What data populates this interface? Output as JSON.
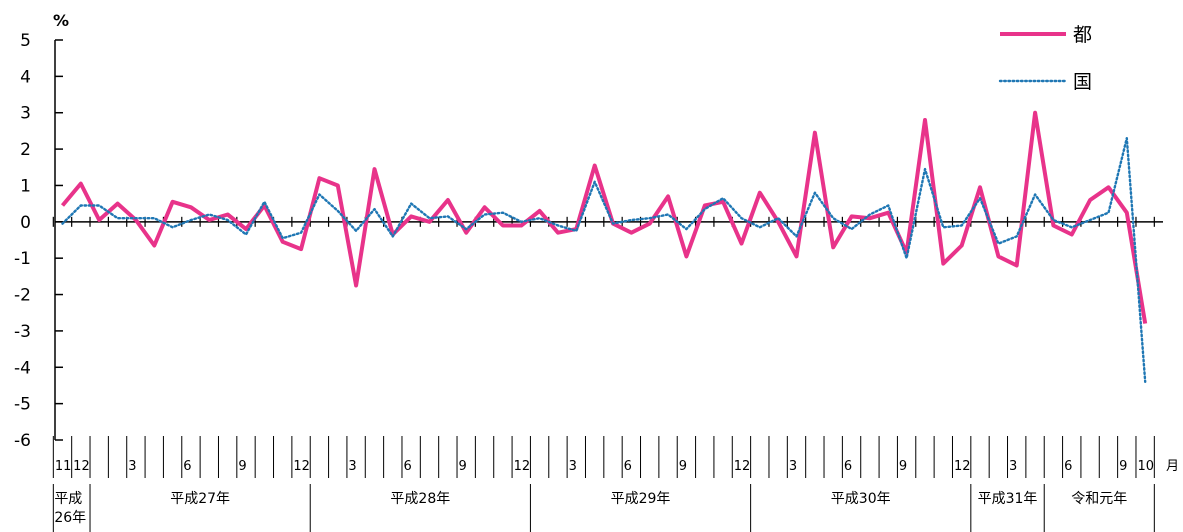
{
  "chart_data": {
    "type": "line",
    "y_unit": "%",
    "x_unit": "月",
    "ylim": [
      -6,
      5
    ],
    "y_ticks": [
      5,
      4,
      3,
      2,
      1,
      0,
      -1,
      -2,
      -3,
      -4,
      -5,
      -6
    ],
    "grid": false,
    "legend_position": "top-right",
    "month_labels": [
      {
        "index": 0,
        "text": "11"
      },
      {
        "index": 1,
        "text": "12"
      },
      {
        "index": 4,
        "text": "3"
      },
      {
        "index": 7,
        "text": "6"
      },
      {
        "index": 10,
        "text": "9"
      },
      {
        "index": 13,
        "text": "12"
      },
      {
        "index": 16,
        "text": "3"
      },
      {
        "index": 19,
        "text": "6"
      },
      {
        "index": 22,
        "text": "9"
      },
      {
        "index": 25,
        "text": "12"
      },
      {
        "index": 28,
        "text": "3"
      },
      {
        "index": 31,
        "text": "6"
      },
      {
        "index": 34,
        "text": "9"
      },
      {
        "index": 37,
        "text": "12"
      },
      {
        "index": 40,
        "text": "3"
      },
      {
        "index": 43,
        "text": "6"
      },
      {
        "index": 46,
        "text": "9"
      },
      {
        "index": 49,
        "text": "12"
      },
      {
        "index": 52,
        "text": "3"
      },
      {
        "index": 55,
        "text": "6"
      },
      {
        "index": 58,
        "text": "9"
      },
      {
        "index": 59,
        "text": "10"
      }
    ],
    "year_groups": [
      {
        "label_lines": [
          "平成",
          "26年"
        ],
        "start": 0,
        "end": 1
      },
      {
        "label_lines": [
          "平成27年"
        ],
        "start": 2,
        "end": 13
      },
      {
        "label_lines": [
          "平成28年"
        ],
        "start": 14,
        "end": 25
      },
      {
        "label_lines": [
          "平成29年"
        ],
        "start": 26,
        "end": 37
      },
      {
        "label_lines": [
          "平成30年"
        ],
        "start": 38,
        "end": 49
      },
      {
        "label_lines": [
          "平成31年"
        ],
        "start": 50,
        "end": 53
      },
      {
        "label_lines": [
          "令和元年"
        ],
        "start": 54,
        "end": 59
      }
    ],
    "series": [
      {
        "name": "都",
        "color": "#e8338a",
        "style": "solid",
        "values": [
          0.45,
          1.05,
          0.05,
          0.5,
          0.05,
          -0.65,
          0.55,
          0.4,
          0.05,
          0.2,
          -0.2,
          0.45,
          -0.55,
          -0.75,
          1.2,
          1.0,
          -1.75,
          1.45,
          -0.35,
          0.15,
          0.0,
          0.6,
          -0.3,
          0.4,
          -0.1,
          -0.1,
          0.3,
          -0.3,
          -0.2,
          1.55,
          -0.05,
          -0.3,
          -0.05,
          0.7,
          -0.95,
          0.45,
          0.55,
          -0.6,
          0.8,
          0.0,
          -0.95,
          2.45,
          -0.7,
          0.15,
          0.1,
          0.25,
          -0.85,
          2.8,
          -1.15,
          -0.65,
          0.95,
          -0.95,
          -1.2,
          3.0,
          -0.1,
          -0.35,
          0.6,
          0.95,
          0.25,
          -2.8
        ]
      },
      {
        "name": "国",
        "color": "#1f77b4",
        "style": "dotted",
        "values": [
          -0.05,
          0.45,
          0.45,
          0.1,
          0.1,
          0.1,
          -0.15,
          0.05,
          0.2,
          0.05,
          -0.35,
          0.55,
          -0.45,
          -0.3,
          0.75,
          0.3,
          -0.25,
          0.35,
          -0.4,
          0.5,
          0.1,
          0.15,
          -0.2,
          0.2,
          0.25,
          0.0,
          0.1,
          -0.1,
          -0.25,
          1.1,
          -0.05,
          0.05,
          0.1,
          0.2,
          -0.2,
          0.35,
          0.65,
          0.1,
          -0.15,
          0.1,
          -0.4,
          0.8,
          0.1,
          -0.2,
          0.2,
          0.45,
          -1.0,
          1.45,
          -0.15,
          -0.1,
          0.65,
          -0.6,
          -0.4,
          0.75,
          0.05,
          -0.15,
          0.05,
          0.25,
          2.3,
          -4.4
        ]
      }
    ]
  }
}
